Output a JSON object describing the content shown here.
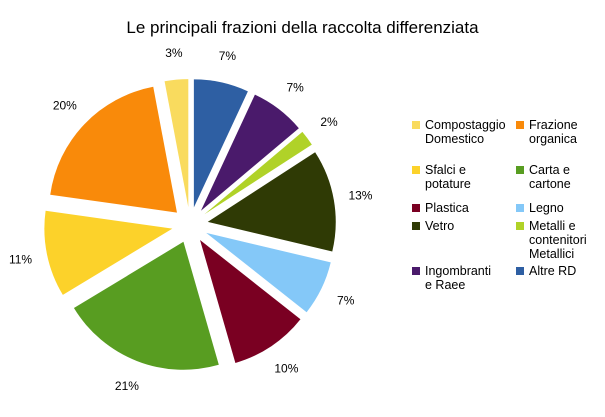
{
  "chart_data": {
    "type": "pie",
    "title": "Le principali frazioni della raccolta differenziata",
    "slices": [
      {
        "label": "Altre RD",
        "value": 7,
        "display": "7%",
        "color": "#2E5FA3"
      },
      {
        "label": "Ingombranti e Raee",
        "value": 7,
        "display": "7%",
        "color": "#4A1A6B"
      },
      {
        "label": "Metalli e contenitori Metallici",
        "value": 2,
        "display": "2%",
        "color": "#B0D228"
      },
      {
        "label": "Vetro",
        "value": 13,
        "display": "13%",
        "color": "#2F3A05"
      },
      {
        "label": "Legno",
        "value": 7,
        "display": "7%",
        "color": "#84C8F8"
      },
      {
        "label": "Plastica",
        "value": 10,
        "display": "10%",
        "color": "#7A0022"
      },
      {
        "label": "Carta e cartone",
        "value": 21,
        "display": "21%",
        "color": "#589D21"
      },
      {
        "label": "Sfalci e potature",
        "value": 11,
        "display": "11%",
        "color": "#FCD22A"
      },
      {
        "label": "Frazione organica",
        "value": 20,
        "display": "20%",
        "color": "#F98A0A"
      },
      {
        "label": "Compostaggio Domestico",
        "value": 3,
        "display": "3%",
        "color": "#F9DB5E"
      }
    ],
    "legend": {
      "placement": "right",
      "items": [
        {
          "label": "Compostaggio\nDomestico",
          "color": "#F9DB5E"
        },
        {
          "label": "Frazione\norganica",
          "color": "#F98A0A"
        },
        {
          "label": "Sfalci e\npotature",
          "color": "#FCD22A"
        },
        {
          "label": "Carta e\ncartone",
          "color": "#589D21"
        },
        {
          "label": "Plastica",
          "color": "#7A0022"
        },
        {
          "label": "Legno",
          "color": "#84C8F8"
        },
        {
          "label": "Vetro",
          "color": "#2F3A05"
        },
        {
          "label": "Metalli e\ncontenitori\nMetallici",
          "color": "#B0D228"
        },
        {
          "label": "Ingombranti\ne Raee",
          "color": "#4A1A6B"
        },
        {
          "label": "Altre RD",
          "color": "#2E5FA3"
        }
      ]
    }
  }
}
